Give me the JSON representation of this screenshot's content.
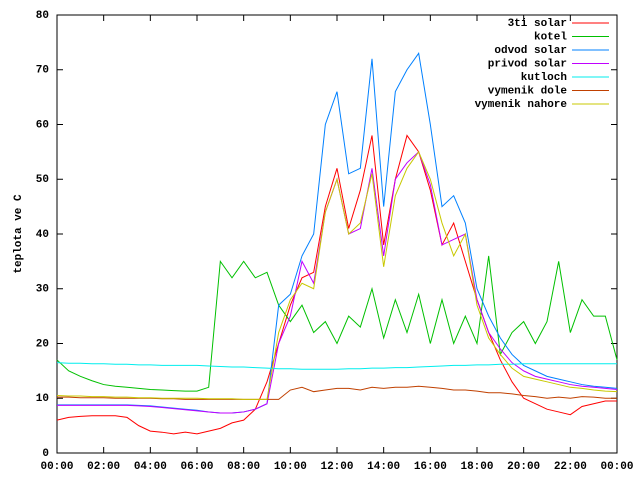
{
  "chart_data": {
    "type": "line",
    "y_label": "teplota ve C",
    "x": [
      0,
      0.5,
      1,
      1.5,
      2,
      2.5,
      3,
      3.5,
      4,
      4.5,
      5,
      5.5,
      6,
      6.5,
      7,
      7.5,
      8,
      8.5,
      9,
      9.5,
      10,
      10.5,
      11,
      11.5,
      12,
      12.5,
      13,
      13.5,
      14,
      14.5,
      15,
      15.5,
      16,
      16.5,
      17,
      17.5,
      18,
      18.5,
      19,
      19.5,
      20,
      20.5,
      21,
      21.5,
      22,
      22.5,
      23,
      23.5,
      24
    ],
    "xlim": [
      0,
      24
    ],
    "xticks": [
      {
        "value": 0,
        "label": "00:00"
      },
      {
        "value": 2,
        "label": "02:00"
      },
      {
        "value": 4,
        "label": "04:00"
      },
      {
        "value": 6,
        "label": "06:00"
      },
      {
        "value": 8,
        "label": "08:00"
      },
      {
        "value": 10,
        "label": "10:00"
      },
      {
        "value": 12,
        "label": "12:00"
      },
      {
        "value": 14,
        "label": "14:00"
      },
      {
        "value": 16,
        "label": "16:00"
      },
      {
        "value": 18,
        "label": "18:00"
      },
      {
        "value": 20,
        "label": "20:00"
      },
      {
        "value": 22,
        "label": "22:00"
      },
      {
        "value": 24,
        "label": "00:00"
      }
    ],
    "ylim": [
      0,
      80
    ],
    "yticks": [
      0,
      10,
      20,
      30,
      40,
      50,
      60,
      70,
      80
    ],
    "legend": "top-right",
    "series": [
      {
        "name": "3ti solar",
        "color": "#ff0000",
        "values": [
          6,
          6.5,
          6.7,
          6.8,
          6.8,
          6.8,
          6.5,
          5,
          4,
          3.8,
          3.5,
          3.8,
          3.5,
          4,
          4.5,
          5.5,
          6,
          8,
          13,
          20,
          27,
          32,
          33,
          45,
          52,
          41,
          48,
          58,
          38,
          50,
          58,
          55,
          48,
          38,
          42,
          35,
          28,
          22,
          17,
          13,
          10,
          9,
          8,
          7.5,
          7,
          8.5,
          9,
          9.5,
          9.5
        ]
      },
      {
        "name": "kotel",
        "color": "#00c000",
        "values": [
          17,
          15,
          14,
          13.2,
          12.5,
          12.2,
          12,
          11.8,
          11.6,
          11.5,
          11.4,
          11.3,
          11.3,
          12,
          35,
          32,
          35,
          32,
          33,
          27,
          24,
          27,
          22,
          24,
          20,
          25,
          23,
          30,
          21,
          28,
          22,
          29,
          20,
          28,
          20,
          25,
          20,
          36,
          18,
          22,
          24,
          20,
          24,
          35,
          22,
          28,
          25,
          25,
          17
        ]
      },
      {
        "name": "odvod solar",
        "color": "#0080ff",
        "values": [
          8.8,
          8.8,
          8.8,
          8.8,
          8.8,
          8.8,
          8.8,
          8.7,
          8.6,
          8.4,
          8.2,
          8,
          7.8,
          7.5,
          7.3,
          7.3,
          7.5,
          8,
          9,
          27,
          29,
          36,
          40,
          60,
          66,
          51,
          52,
          72,
          45,
          66,
          70,
          73,
          60,
          45,
          47,
          42,
          30,
          25,
          21,
          18,
          16,
          15,
          14,
          13.5,
          13,
          12.5,
          12.2,
          12,
          11.8
        ]
      },
      {
        "name": "privod solar",
        "color": "#c000ff",
        "values": [
          8.7,
          8.7,
          8.7,
          8.7,
          8.7,
          8.7,
          8.7,
          8.6,
          8.5,
          8.3,
          8.1,
          7.9,
          7.7,
          7.5,
          7.3,
          7.3,
          7.5,
          8,
          9,
          20,
          25,
          35,
          31,
          44,
          50,
          40,
          41,
          52,
          36,
          50,
          53,
          55,
          49,
          38,
          39,
          40,
          28,
          22,
          19,
          16.5,
          15,
          14,
          13.5,
          13,
          12.5,
          12.2,
          12,
          11.8,
          11.6
        ]
      },
      {
        "name": "kutloch",
        "color": "#00eeee",
        "values": [
          16.5,
          16.4,
          16.4,
          16.3,
          16.3,
          16.2,
          16.2,
          16.1,
          16.1,
          16,
          16,
          16,
          16,
          15.9,
          15.8,
          15.7,
          15.7,
          15.6,
          15.5,
          15.4,
          15.4,
          15.3,
          15.3,
          15.3,
          15.3,
          15.4,
          15.4,
          15.5,
          15.5,
          15.6,
          15.6,
          15.7,
          15.8,
          15.9,
          16,
          16,
          16.1,
          16.1,
          16.2,
          16.2,
          16.3,
          16.3,
          16.3,
          16.3,
          16.3,
          16.3,
          16.3,
          16.3,
          16.3
        ]
      },
      {
        "name": "vymenik dole",
        "color": "#c04000",
        "values": [
          10.2,
          10.2,
          10.1,
          10.1,
          10.1,
          10,
          10,
          10,
          10,
          9.9,
          9.9,
          9.8,
          9.8,
          9.8,
          9.8,
          9.8,
          9.8,
          9.8,
          9.8,
          9.8,
          11.5,
          12,
          11.2,
          11.5,
          11.8,
          11.8,
          11.5,
          12,
          11.8,
          12,
          12,
          12.2,
          12,
          11.8,
          11.5,
          11.5,
          11.3,
          11,
          11,
          10.8,
          10.5,
          10.3,
          10,
          10.2,
          10,
          10.3,
          10.2,
          10,
          10
        ]
      },
      {
        "name": "vymenik nahore",
        "color": "#c8c800",
        "values": [
          10.5,
          10.4,
          10.4,
          10.3,
          10.3,
          10.2,
          10.2,
          10.1,
          10.1,
          10,
          10,
          10,
          10,
          9.9,
          9.9,
          9.9,
          9.8,
          9.8,
          9.8,
          22,
          28,
          31,
          30,
          44,
          50,
          40,
          42,
          51,
          34,
          47,
          52,
          55,
          50,
          42,
          36,
          40,
          27,
          21,
          18,
          15.5,
          14,
          13.5,
          13,
          12.5,
          12,
          11.8,
          11.5,
          11.3,
          11.2
        ]
      }
    ]
  }
}
